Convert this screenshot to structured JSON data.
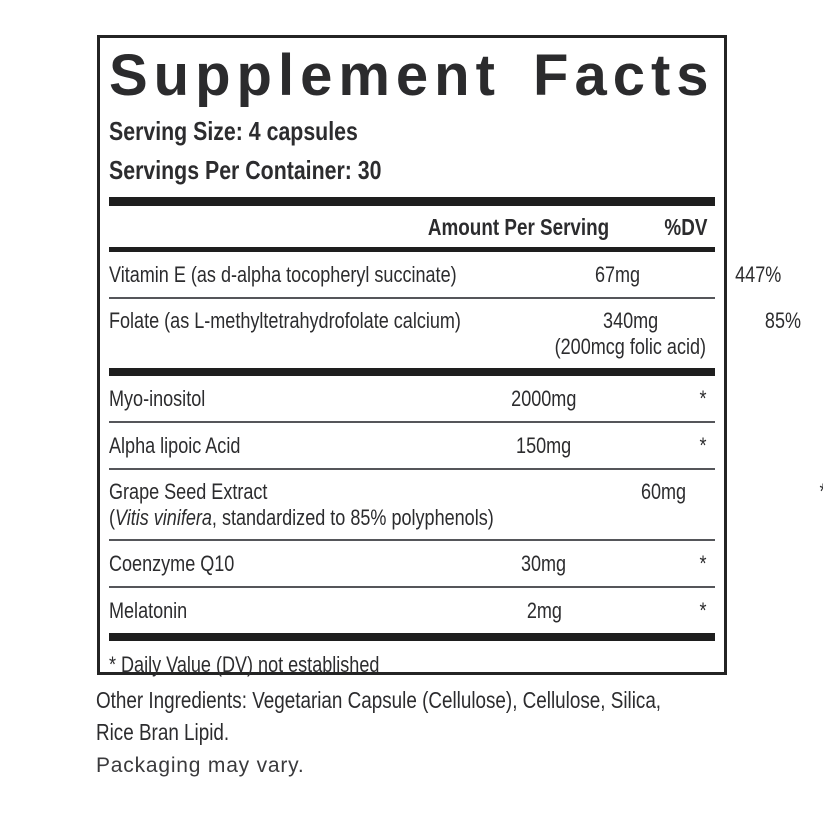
{
  "title": "Supplement Facts",
  "serving": {
    "size": "Serving Size: 4 capsules",
    "per_container": "Servings Per Container: 30"
  },
  "table": {
    "amount_header": "Amount Per Serving",
    "dv_header": "%DV",
    "rows": [
      {
        "name": "Vitamin E (as d-alpha tocopheryl succinate)",
        "amount": "67mg",
        "dv": "447%"
      },
      {
        "name": "Folate (as L-methyltetrahydrofolate calcium)",
        "amount": "340mg",
        "amount_line2": "(200mcg folic acid)",
        "dv": "85%"
      },
      {
        "name": "Myo-inositol",
        "amount": "2000mg",
        "dv": "*"
      },
      {
        "name": "Alpha lipoic Acid",
        "amount": "150mg",
        "dv": "*"
      },
      {
        "name": "Grape Seed Extract",
        "name_line2_pre": "(",
        "name_line2_italic": "Vitis vinifera",
        "name_line2_post": ", standardized to 85% polyphenols)",
        "amount": "60mg",
        "dv": "*"
      },
      {
        "name": "Coenzyme Q10",
        "amount": "30mg",
        "dv": "*"
      },
      {
        "name": "Melatonin",
        "amount": "2mg",
        "dv": "*"
      }
    ],
    "footnote": "* Daily Value (DV) not established"
  },
  "other_ingredients_line1": "Other Ingredients: Vegetarian Capsule (Cellulose), Cellulose, Silica,",
  "other_ingredients_line2": "Rice Bran Lipid.",
  "packaging_note": "Packaging may vary.",
  "colors": {
    "text": "#2c2c2e",
    "border": "#242424",
    "thick_bar": "#1e1e1e",
    "thin_divider": "#55565a",
    "background": "#ffffff"
  }
}
